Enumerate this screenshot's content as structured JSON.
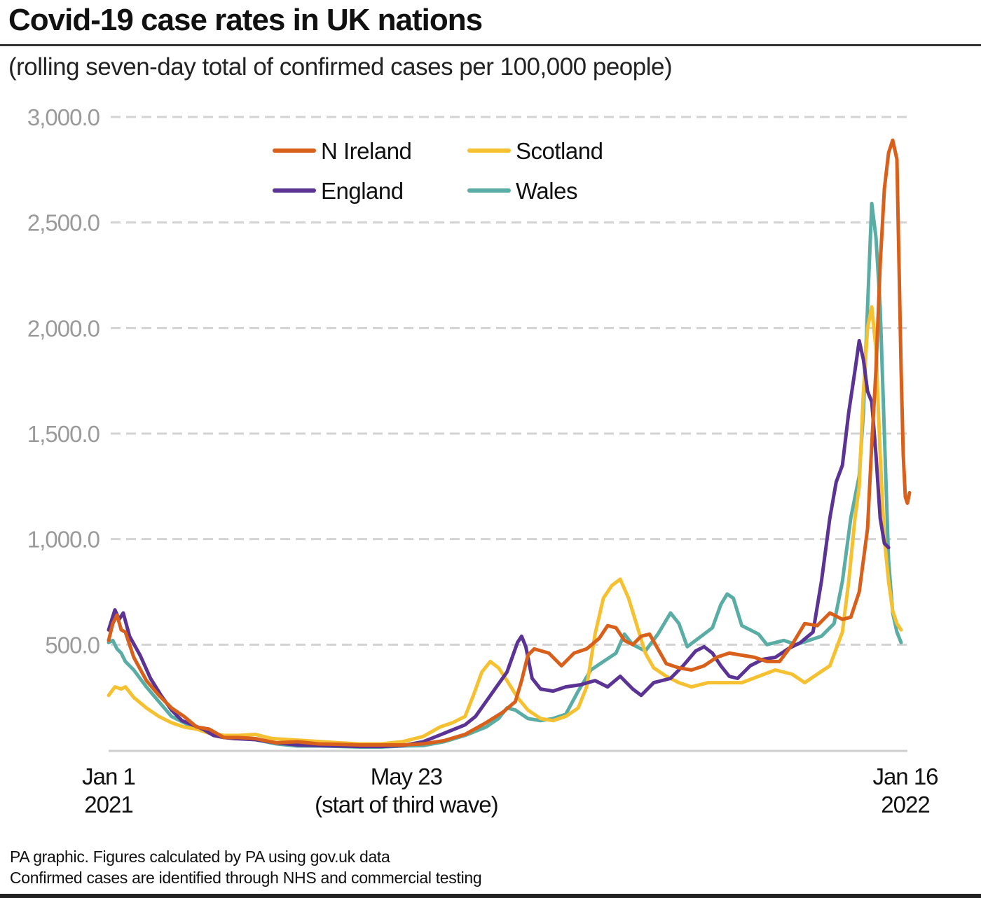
{
  "header": {
    "title": "Covid-19 case rates in UK nations",
    "subtitle": "(rolling seven-day total of confirmed cases per 100,000 people)"
  },
  "footer": {
    "line1": "PA graphic. Figures calculated by PA using gov.uk data",
    "line2": "Confirmed cases are identified through NHS and commercial testing"
  },
  "chart_data": {
    "type": "line",
    "title": "Covid-19 case rates in UK nations",
    "subtitle": "(rolling seven-day total of confirmed cases per 100,000 people)",
    "xlabel": "",
    "ylabel": "",
    "x_unit": "days since Jan 1 2021",
    "xlim": [
      0,
      380
    ],
    "ylim": [
      0,
      3000
    ],
    "grid": true,
    "legend_position": "top-center",
    "yticks": [
      {
        "value": 500,
        "label": "500.0"
      },
      {
        "value": 1000,
        "label": "1,000.0"
      },
      {
        "value": 1500,
        "label": "1,500.0"
      },
      {
        "value": 2000,
        "label": "2,000.0"
      },
      {
        "value": 2500,
        "label": "2,500.0"
      },
      {
        "value": 3000,
        "label": "3,000.0"
      }
    ],
    "xticks": [
      {
        "value": 0,
        "line1": "Jan 1",
        "line2": "2021"
      },
      {
        "value": 142,
        "line1": "May 23",
        "line2": "(start of third wave)"
      },
      {
        "value": 380,
        "line1": "Jan 16",
        "line2": "2022"
      }
    ],
    "series": [
      {
        "name": "England",
        "color": "#5b3394",
        "points": [
          [
            0,
            570
          ],
          [
            3,
            665
          ],
          [
            5,
            620
          ],
          [
            7,
            650
          ],
          [
            10,
            540
          ],
          [
            15,
            450
          ],
          [
            20,
            340
          ],
          [
            25,
            260
          ],
          [
            30,
            190
          ],
          [
            35,
            140
          ],
          [
            40,
            120
          ],
          [
            45,
            100
          ],
          [
            50,
            70
          ],
          [
            55,
            60
          ],
          [
            60,
            55
          ],
          [
            70,
            50
          ],
          [
            80,
            35
          ],
          [
            90,
            25
          ],
          [
            100,
            22
          ],
          [
            110,
            20
          ],
          [
            120,
            18
          ],
          [
            130,
            18
          ],
          [
            140,
            22
          ],
          [
            150,
            40
          ],
          [
            160,
            80
          ],
          [
            170,
            120
          ],
          [
            175,
            160
          ],
          [
            180,
            230
          ],
          [
            185,
            300
          ],
          [
            190,
            370
          ],
          [
            195,
            510
          ],
          [
            197,
            540
          ],
          [
            199,
            490
          ],
          [
            202,
            340
          ],
          [
            206,
            290
          ],
          [
            212,
            280
          ],
          [
            218,
            300
          ],
          [
            225,
            310
          ],
          [
            232,
            330
          ],
          [
            238,
            300
          ],
          [
            244,
            350
          ],
          [
            250,
            290
          ],
          [
            254,
            260
          ],
          [
            260,
            320
          ],
          [
            268,
            340
          ],
          [
            274,
            400
          ],
          [
            280,
            470
          ],
          [
            284,
            490
          ],
          [
            288,
            460
          ],
          [
            292,
            400
          ],
          [
            296,
            350
          ],
          [
            300,
            340
          ],
          [
            306,
            400
          ],
          [
            312,
            430
          ],
          [
            318,
            440
          ],
          [
            324,
            480
          ],
          [
            330,
            510
          ],
          [
            336,
            560
          ],
          [
            340,
            800
          ],
          [
            344,
            1100
          ],
          [
            347,
            1270
          ],
          [
            350,
            1350
          ],
          [
            353,
            1600
          ],
          [
            356,
            1800
          ],
          [
            358,
            1940
          ],
          [
            360,
            1850
          ],
          [
            362,
            1700
          ],
          [
            364,
            1650
          ],
          [
            366,
            1400
          ],
          [
            368,
            1100
          ],
          [
            370,
            980
          ],
          [
            372,
            960
          ]
        ]
      },
      {
        "name": "N Ireland",
        "color": "#d9601a",
        "points": [
          [
            0,
            520
          ],
          [
            2,
            600
          ],
          [
            4,
            640
          ],
          [
            6,
            570
          ],
          [
            8,
            560
          ],
          [
            12,
            440
          ],
          [
            18,
            330
          ],
          [
            24,
            260
          ],
          [
            30,
            200
          ],
          [
            36,
            160
          ],
          [
            42,
            110
          ],
          [
            48,
            100
          ],
          [
            55,
            60
          ],
          [
            62,
            60
          ],
          [
            70,
            55
          ],
          [
            80,
            35
          ],
          [
            90,
            40
          ],
          [
            100,
            30
          ],
          [
            110,
            28
          ],
          [
            120,
            25
          ],
          [
            130,
            25
          ],
          [
            140,
            25
          ],
          [
            150,
            30
          ],
          [
            160,
            45
          ],
          [
            170,
            75
          ],
          [
            180,
            130
          ],
          [
            188,
            180
          ],
          [
            194,
            230
          ],
          [
            197,
            330
          ],
          [
            200,
            450
          ],
          [
            203,
            480
          ],
          [
            210,
            460
          ],
          [
            216,
            400
          ],
          [
            222,
            460
          ],
          [
            228,
            480
          ],
          [
            234,
            530
          ],
          [
            238,
            590
          ],
          [
            242,
            580
          ],
          [
            246,
            520
          ],
          [
            250,
            500
          ],
          [
            254,
            540
          ],
          [
            258,
            550
          ],
          [
            262,
            480
          ],
          [
            266,
            410
          ],
          [
            272,
            390
          ],
          [
            278,
            380
          ],
          [
            284,
            400
          ],
          [
            290,
            440
          ],
          [
            296,
            460
          ],
          [
            302,
            450
          ],
          [
            308,
            440
          ],
          [
            314,
            420
          ],
          [
            320,
            420
          ],
          [
            326,
            500
          ],
          [
            332,
            600
          ],
          [
            338,
            590
          ],
          [
            344,
            650
          ],
          [
            350,
            620
          ],
          [
            354,
            630
          ],
          [
            358,
            750
          ],
          [
            362,
            1050
          ],
          [
            364,
            1450
          ],
          [
            366,
            1800
          ],
          [
            368,
            2300
          ],
          [
            370,
            2660
          ],
          [
            372,
            2830
          ],
          [
            374,
            2890
          ],
          [
            376,
            2800
          ],
          [
            377,
            2300
          ],
          [
            378,
            1800
          ],
          [
            379,
            1400
          ],
          [
            380,
            1200
          ],
          [
            381,
            1170
          ],
          [
            382,
            1220
          ]
        ]
      },
      {
        "name": "Scotland",
        "color": "#f6c130",
        "points": [
          [
            0,
            260
          ],
          [
            3,
            300
          ],
          [
            6,
            290
          ],
          [
            8,
            300
          ],
          [
            12,
            250
          ],
          [
            18,
            200
          ],
          [
            24,
            160
          ],
          [
            30,
            130
          ],
          [
            36,
            110
          ],
          [
            42,
            100
          ],
          [
            48,
            80
          ],
          [
            55,
            70
          ],
          [
            62,
            70
          ],
          [
            70,
            75
          ],
          [
            78,
            55
          ],
          [
            86,
            50
          ],
          [
            94,
            45
          ],
          [
            102,
            40
          ],
          [
            110,
            35
          ],
          [
            120,
            30
          ],
          [
            130,
            30
          ],
          [
            140,
            40
          ],
          [
            150,
            65
          ],
          [
            158,
            110
          ],
          [
            164,
            130
          ],
          [
            170,
            160
          ],
          [
            174,
            260
          ],
          [
            178,
            370
          ],
          [
            182,
            420
          ],
          [
            186,
            390
          ],
          [
            190,
            330
          ],
          [
            195,
            250
          ],
          [
            200,
            190
          ],
          [
            206,
            150
          ],
          [
            212,
            140
          ],
          [
            218,
            160
          ],
          [
            224,
            200
          ],
          [
            228,
            300
          ],
          [
            232,
            550
          ],
          [
            236,
            720
          ],
          [
            240,
            780
          ],
          [
            244,
            810
          ],
          [
            248,
            720
          ],
          [
            252,
            590
          ],
          [
            256,
            460
          ],
          [
            260,
            390
          ],
          [
            266,
            350
          ],
          [
            272,
            320
          ],
          [
            278,
            300
          ],
          [
            286,
            320
          ],
          [
            294,
            320
          ],
          [
            302,
            320
          ],
          [
            310,
            350
          ],
          [
            318,
            380
          ],
          [
            326,
            360
          ],
          [
            332,
            320
          ],
          [
            338,
            360
          ],
          [
            344,
            400
          ],
          [
            350,
            560
          ],
          [
            353,
            800
          ],
          [
            356,
            1100
          ],
          [
            358,
            1250
          ],
          [
            360,
            1700
          ],
          [
            362,
            2000
          ],
          [
            364,
            2100
          ],
          [
            366,
            1900
          ],
          [
            368,
            1400
          ],
          [
            370,
            1000
          ],
          [
            372,
            800
          ],
          [
            374,
            660
          ],
          [
            376,
            600
          ],
          [
            378,
            570
          ]
        ]
      },
      {
        "name": "Wales",
        "color": "#5aada5",
        "points": [
          [
            0,
            510
          ],
          [
            2,
            520
          ],
          [
            4,
            480
          ],
          [
            6,
            460
          ],
          [
            8,
            420
          ],
          [
            12,
            380
          ],
          [
            18,
            300
          ],
          [
            24,
            230
          ],
          [
            30,
            160
          ],
          [
            36,
            130
          ],
          [
            42,
            100
          ],
          [
            48,
            90
          ],
          [
            55,
            60
          ],
          [
            62,
            55
          ],
          [
            70,
            50
          ],
          [
            80,
            30
          ],
          [
            90,
            20
          ],
          [
            100,
            20
          ],
          [
            110,
            18
          ],
          [
            120,
            15
          ],
          [
            130,
            15
          ],
          [
            140,
            20
          ],
          [
            150,
            22
          ],
          [
            160,
            40
          ],
          [
            170,
            70
          ],
          [
            180,
            110
          ],
          [
            186,
            150
          ],
          [
            190,
            200
          ],
          [
            194,
            190
          ],
          [
            200,
            150
          ],
          [
            206,
            140
          ],
          [
            212,
            150
          ],
          [
            218,
            170
          ],
          [
            224,
            280
          ],
          [
            230,
            380
          ],
          [
            236,
            420
          ],
          [
            242,
            460
          ],
          [
            246,
            550
          ],
          [
            250,
            500
          ],
          [
            256,
            470
          ],
          [
            262,
            550
          ],
          [
            268,
            650
          ],
          [
            272,
            600
          ],
          [
            276,
            490
          ],
          [
            280,
            520
          ],
          [
            284,
            550
          ],
          [
            288,
            580
          ],
          [
            292,
            690
          ],
          [
            295,
            740
          ],
          [
            298,
            720
          ],
          [
            302,
            590
          ],
          [
            306,
            570
          ],
          [
            310,
            550
          ],
          [
            314,
            500
          ],
          [
            318,
            510
          ],
          [
            322,
            520
          ],
          [
            328,
            500
          ],
          [
            334,
            520
          ],
          [
            340,
            540
          ],
          [
            346,
            600
          ],
          [
            350,
            800
          ],
          [
            354,
            1100
          ],
          [
            358,
            1300
          ],
          [
            360,
            1600
          ],
          [
            362,
            2100
          ],
          [
            364,
            2590
          ],
          [
            366,
            2430
          ],
          [
            368,
            2100
          ],
          [
            370,
            1500
          ],
          [
            372,
            900
          ],
          [
            374,
            650
          ],
          [
            376,
            560
          ],
          [
            378,
            510
          ]
        ]
      }
    ]
  }
}
